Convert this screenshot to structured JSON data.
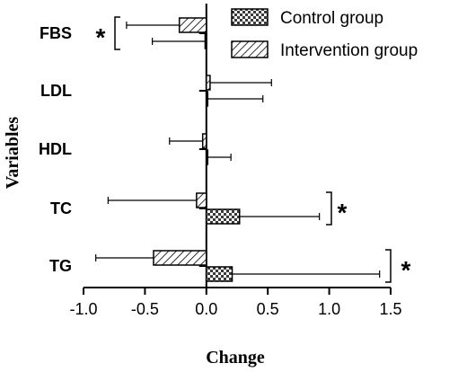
{
  "chart_data": {
    "type": "bar",
    "orientation": "horizontal",
    "xlabel": "Change",
    "ylabel": "Variables",
    "xlim": [
      -1.0,
      1.5
    ],
    "x_ticks": [
      "-1.0",
      "-0.5",
      "0.0",
      "0.5",
      "1.0",
      "1.5"
    ],
    "x_tick_values": [
      -1.0,
      -0.5,
      0.0,
      0.5,
      1.0,
      1.5
    ],
    "categories": [
      "FBS",
      "LDL",
      "HDL",
      "TC",
      "TG"
    ],
    "series": [
      {
        "name": "Control group",
        "pattern": "crosshatch",
        "values": [
          -0.01,
          0.01,
          0.0,
          0.27,
          0.21
        ],
        "error": [
          0.43,
          0.45,
          0.2,
          0.65,
          1.2
        ]
      },
      {
        "name": "Intervention group",
        "pattern": "diagonal",
        "values": [
          -0.22,
          0.03,
          -0.03,
          -0.08,
          -0.43
        ],
        "error": [
          0.43,
          0.5,
          0.27,
          0.72,
          0.47
        ]
      }
    ],
    "significance": [
      {
        "category": "FBS",
        "label": "*"
      },
      {
        "category": "TC",
        "label": "*"
      },
      {
        "category": "TG",
        "label": "*"
      }
    ],
    "legend_position": "top-right",
    "grid": false
  }
}
